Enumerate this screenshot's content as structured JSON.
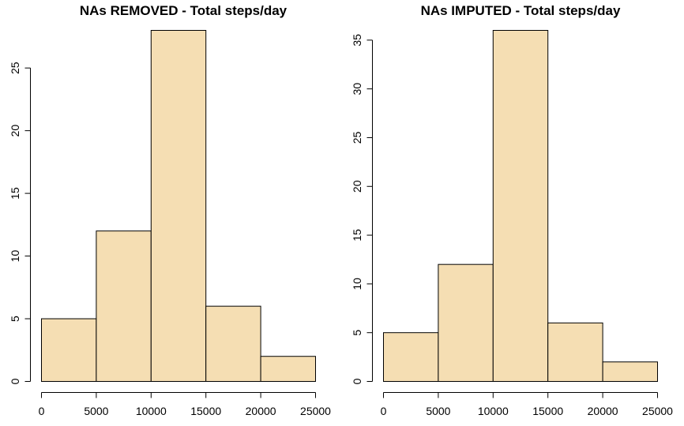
{
  "chart_data": [
    {
      "type": "bar",
      "title": "NAs REMOVED - Total steps/day",
      "xlabel": "",
      "ylabel": "",
      "bins": [
        [
          0,
          5000
        ],
        [
          5000,
          10000
        ],
        [
          10000,
          15000
        ],
        [
          15000,
          20000
        ],
        [
          20000,
          25000
        ]
      ],
      "values": [
        5,
        12,
        28,
        6,
        2
      ],
      "xlim": [
        0,
        25000
      ],
      "x_ticks": [
        0,
        5000,
        10000,
        15000,
        20000,
        25000
      ],
      "ylim": [
        0,
        28
      ],
      "y_ticks": [
        0,
        5,
        10,
        15,
        20,
        25
      ],
      "bar_color": "#F5DEB3",
      "grid": false,
      "legend": false
    },
    {
      "type": "bar",
      "title": "NAs IMPUTED - Total steps/day",
      "xlabel": "",
      "ylabel": "",
      "bins": [
        [
          0,
          5000
        ],
        [
          5000,
          10000
        ],
        [
          10000,
          15000
        ],
        [
          15000,
          20000
        ],
        [
          20000,
          25000
        ]
      ],
      "values": [
        5,
        12,
        36,
        6,
        2
      ],
      "xlim": [
        0,
        25000
      ],
      "x_ticks": [
        0,
        5000,
        10000,
        15000,
        20000,
        25000
      ],
      "ylim": [
        0,
        36
      ],
      "y_ticks": [
        0,
        5,
        10,
        15,
        20,
        25,
        30,
        35
      ],
      "bar_color": "#F5DEB3",
      "grid": false,
      "legend": false
    }
  ]
}
